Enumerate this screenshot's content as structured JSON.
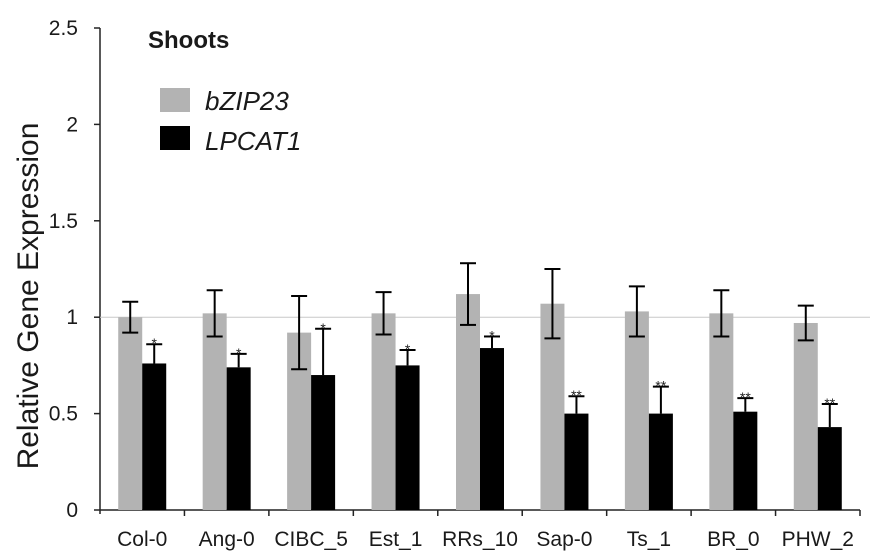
{
  "chart_data": {
    "type": "bar",
    "title": "Shoots",
    "ylabel": "Relative Gene Expression",
    "xlabel": "",
    "ylim": [
      0,
      2.5
    ],
    "yticks": [
      "0",
      "0.5",
      "1",
      "1.5",
      "2",
      "2.5"
    ],
    "reference_line": 1,
    "grid": false,
    "legend_position": "top-left",
    "categories": [
      "Col-0",
      "Ang-0",
      "CIBC_5",
      "Est_1",
      "RRs_10",
      "Sap-0",
      "Ts_1",
      "BR_0",
      "PHW_2"
    ],
    "series": [
      {
        "name": "bZIP23",
        "color": "#b3b3b3",
        "values": [
          1.0,
          1.02,
          0.92,
          1.02,
          1.12,
          1.07,
          1.03,
          1.02,
          0.97
        ],
        "errors": [
          0.08,
          0.12,
          0.19,
          0.11,
          0.16,
          0.18,
          0.13,
          0.12,
          0.09
        ],
        "significance": [
          "",
          "",
          "",
          "",
          "",
          "",
          "",
          "",
          ""
        ]
      },
      {
        "name": "LPCAT1",
        "color": "#000000",
        "values": [
          0.76,
          0.74,
          0.7,
          0.75,
          0.84,
          0.5,
          0.5,
          0.51,
          0.43
        ],
        "errors": [
          0.1,
          0.07,
          0.24,
          0.08,
          0.06,
          0.09,
          0.14,
          0.07,
          0.12
        ],
        "significance": [
          "*",
          "*",
          "*",
          "*",
          "*",
          "**",
          "**",
          "**",
          "**"
        ]
      }
    ]
  }
}
